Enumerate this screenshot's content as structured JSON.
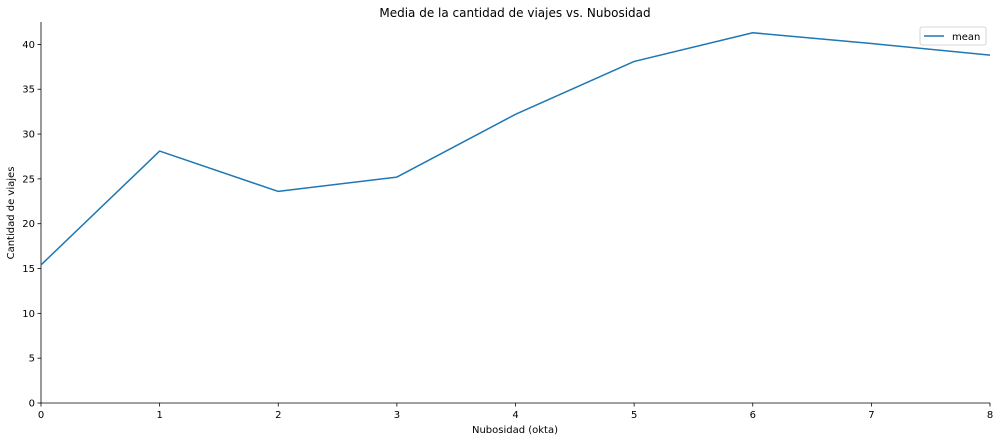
{
  "chart_data": {
    "type": "line",
    "title": "Media de la cantidad de viajes vs. Nubosidad",
    "xlabel": "Nubosidad (okta)",
    "ylabel": "Cantidad de viajes",
    "x": [
      0,
      1,
      2,
      3,
      4,
      5,
      6,
      7,
      8
    ],
    "xlim": [
      0,
      8
    ],
    "ylim": [
      0,
      42.5
    ],
    "xticks": [
      "0",
      "1",
      "2",
      "3",
      "4",
      "5",
      "6",
      "7",
      "8"
    ],
    "yticks": [
      "0",
      "5",
      "10",
      "15",
      "20",
      "25",
      "30",
      "35",
      "40"
    ],
    "series": [
      {
        "name": "mean",
        "color": "#1f77b4",
        "values": [
          15.4,
          28.1,
          23.6,
          25.2,
          32.2,
          38.1,
          41.3,
          40.1,
          38.8
        ]
      }
    ],
    "legend": "top-right",
    "grid": false
  }
}
